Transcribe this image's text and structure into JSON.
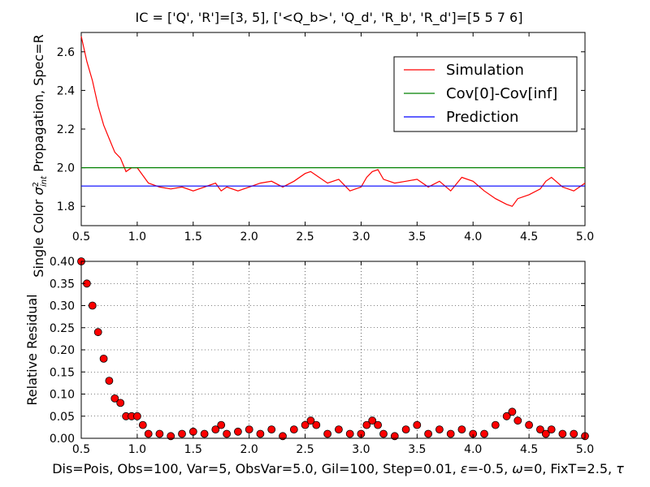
{
  "figure": {
    "title": "IC = ['Q', 'R']=[3, 5], ['<Q_b>', 'Q_d', 'R_b', 'R_d']=[5 5 7 6]",
    "xlabel": "Dis=Pois, Obs=100, Var=5, ObsVar=5.0, Gil=100, Step=0.01, ε=-0.5, ω=0, FixT=2.5, τ",
    "xlabel_parts": {
      "a": "Dis=Pois, Obs=100, Var=5, ObsVar=5.0, Gil=100, Step=0.01, ",
      "eps": "ε",
      "b": "=-0.5, ",
      "omega": "ω",
      "c": "=0, FixT=2.5, ",
      "tau": "τ"
    },
    "xlabel_full": "Dis=Pois, Obs=100, Var=5, ObsVar=5.0, Gil=100, Step=0.01, ε=-0.5, ω=0, FixT=2.5, τ"
  },
  "chart_data": [
    {
      "type": "line",
      "ylabel": "Single Color σ²_int  Propagation, Spec=R",
      "ylabel_parts": {
        "pre": "Single Color ",
        "sigma": "σ",
        "sup": "2",
        "sub": "int",
        "post": "  Propagation, Spec=R"
      },
      "xlim": [
        0.5,
        5.0
      ],
      "ylim": [
        1.7,
        2.7
      ],
      "xticks": [
        "0.5",
        "1.0",
        "1.5",
        "2.0",
        "2.5",
        "3.0",
        "3.5",
        "4.0",
        "4.5",
        "5.0"
      ],
      "yticks": [
        "1.8",
        "2.0",
        "2.2",
        "2.4",
        "2.6"
      ],
      "grid": false,
      "legend": "top-right",
      "series": [
        {
          "name": "Simulation",
          "color": "#ff0000",
          "x": [
            0.5,
            0.55,
            0.6,
            0.65,
            0.7,
            0.75,
            0.8,
            0.85,
            0.9,
            0.95,
            1.0,
            1.05,
            1.1,
            1.2,
            1.3,
            1.4,
            1.5,
            1.6,
            1.7,
            1.75,
            1.8,
            1.9,
            2.0,
            2.1,
            2.2,
            2.3,
            2.4,
            2.5,
            2.55,
            2.6,
            2.7,
            2.8,
            2.9,
            3.0,
            3.05,
            3.1,
            3.15,
            3.2,
            3.3,
            3.4,
            3.5,
            3.6,
            3.7,
            3.8,
            3.9,
            4.0,
            4.1,
            4.2,
            4.3,
            4.35,
            4.4,
            4.5,
            4.6,
            4.65,
            4.7,
            4.8,
            4.9,
            5.0
          ],
          "y": [
            2.68,
            2.55,
            2.45,
            2.32,
            2.22,
            2.15,
            2.08,
            2.05,
            1.98,
            2.0,
            2.0,
            1.96,
            1.92,
            1.9,
            1.89,
            1.9,
            1.88,
            1.9,
            1.92,
            1.88,
            1.9,
            1.88,
            1.9,
            1.92,
            1.93,
            1.9,
            1.93,
            1.97,
            1.98,
            1.96,
            1.92,
            1.94,
            1.88,
            1.9,
            1.95,
            1.98,
            1.99,
            1.94,
            1.92,
            1.93,
            1.94,
            1.9,
            1.93,
            1.88,
            1.95,
            1.93,
            1.88,
            1.84,
            1.81,
            1.8,
            1.84,
            1.86,
            1.89,
            1.93,
            1.95,
            1.9,
            1.88,
            1.92
          ]
        },
        {
          "name": "Cov[0]-Cov[inf]",
          "color": "#008000",
          "x": [
            0.5,
            5.0
          ],
          "y": [
            2.0,
            2.0
          ]
        },
        {
          "name": "Prediction",
          "color": "#0000ff",
          "x": [
            0.5,
            5.0
          ],
          "y": [
            1.905,
            1.905
          ]
        }
      ]
    },
    {
      "type": "scatter",
      "ylabel": "Relative Residual",
      "xlim": [
        0.5,
        5.0
      ],
      "ylim": [
        0.0,
        0.4
      ],
      "xticks": [
        "0.5",
        "1.0",
        "1.5",
        "2.0",
        "2.5",
        "3.0",
        "3.5",
        "4.0",
        "4.5",
        "5.0"
      ],
      "yticks": [
        "0.00",
        "0.05",
        "0.10",
        "0.15",
        "0.20",
        "0.25",
        "0.30",
        "0.35",
        "0.40"
      ],
      "grid": true,
      "marker_color": "#ff0000",
      "x": [
        0.5,
        0.55,
        0.6,
        0.65,
        0.7,
        0.75,
        0.8,
        0.85,
        0.9,
        0.95,
        1.0,
        1.05,
        1.1,
        1.2,
        1.3,
        1.4,
        1.5,
        1.6,
        1.7,
        1.75,
        1.8,
        1.9,
        2.0,
        2.1,
        2.2,
        2.3,
        2.4,
        2.5,
        2.55,
        2.6,
        2.7,
        2.8,
        2.9,
        3.0,
        3.05,
        3.1,
        3.15,
        3.2,
        3.3,
        3.4,
        3.5,
        3.6,
        3.7,
        3.8,
        3.9,
        4.0,
        4.1,
        4.2,
        4.3,
        4.35,
        4.4,
        4.5,
        4.6,
        4.65,
        4.7,
        4.8,
        4.9,
        5.0
      ],
      "y": [
        0.4,
        0.35,
        0.3,
        0.24,
        0.18,
        0.13,
        0.09,
        0.08,
        0.05,
        0.05,
        0.05,
        0.03,
        0.01,
        0.01,
        0.005,
        0.01,
        0.015,
        0.01,
        0.02,
        0.03,
        0.01,
        0.015,
        0.02,
        0.01,
        0.02,
        0.005,
        0.02,
        0.03,
        0.04,
        0.03,
        0.01,
        0.02,
        0.01,
        0.01,
        0.03,
        0.04,
        0.03,
        0.01,
        0.005,
        0.02,
        0.03,
        0.01,
        0.02,
        0.01,
        0.02,
        0.01,
        0.01,
        0.03,
        0.05,
        0.06,
        0.04,
        0.03,
        0.02,
        0.01,
        0.02,
        0.01,
        0.01,
        0.005
      ]
    }
  ]
}
